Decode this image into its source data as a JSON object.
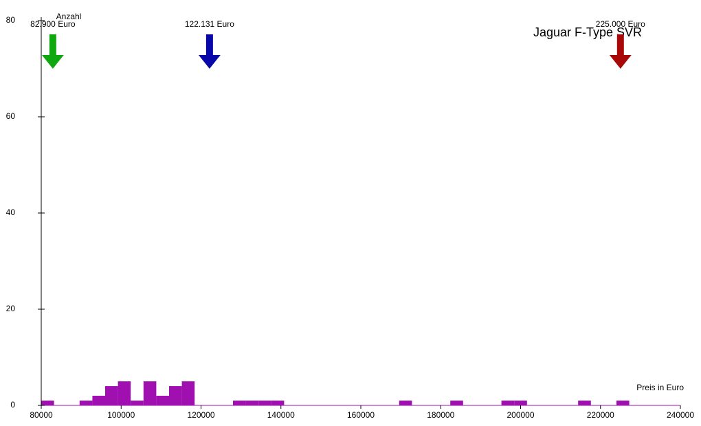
{
  "chart_data": {
    "type": "histogram",
    "title": "Jaguar F-Type SVR",
    "x_label": "Preis in Euro",
    "y_label": "Anzahl",
    "bins": [
      80000,
      83200,
      86400,
      89600,
      92800,
      96000,
      99200,
      102400,
      105600,
      108800,
      112000,
      115200,
      118400,
      121600,
      124800,
      128000,
      131200,
      134400,
      137600,
      140800,
      144000,
      147200,
      150400,
      153600,
      156800,
      160000,
      163200,
      166400,
      169600,
      172800,
      176000,
      179200,
      182400,
      185600,
      188800,
      192000,
      195200,
      198400,
      201600,
      204800,
      208000,
      211200,
      214400,
      217600,
      220800,
      224000,
      227200,
      230400,
      233600,
      236800,
      240000
    ],
    "values": [
      1,
      0,
      0,
      1,
      2,
      4,
      5,
      1,
      5,
      2,
      4,
      5,
      0,
      0,
      0,
      1,
      1,
      1,
      1,
      0,
      0,
      0,
      0,
      0,
      0,
      0,
      0,
      0,
      1,
      0,
      0,
      0,
      1,
      0,
      0,
      0,
      1,
      1,
      0,
      0,
      0,
      0,
      1,
      0,
      0,
      1,
      0,
      0,
      0,
      0
    ],
    "color": "#a010b0",
    "xlim": [
      80000,
      240000
    ],
    "ylim": [
      0,
      80
    ],
    "xticks": [
      80000,
      100000,
      120000,
      140000,
      160000,
      180000,
      200000,
      220000,
      240000
    ],
    "yticks": [
      0,
      20,
      40,
      60,
      80
    ],
    "markers": [
      {
        "value": 82900,
        "label": "82.900 Euro",
        "color": "#10a810"
      },
      {
        "value": 122131,
        "label": "122.131 Euro",
        "color": "#0808a8"
      },
      {
        "value": 225000,
        "label": "225.000 Euro",
        "color": "#a80808"
      }
    ]
  }
}
